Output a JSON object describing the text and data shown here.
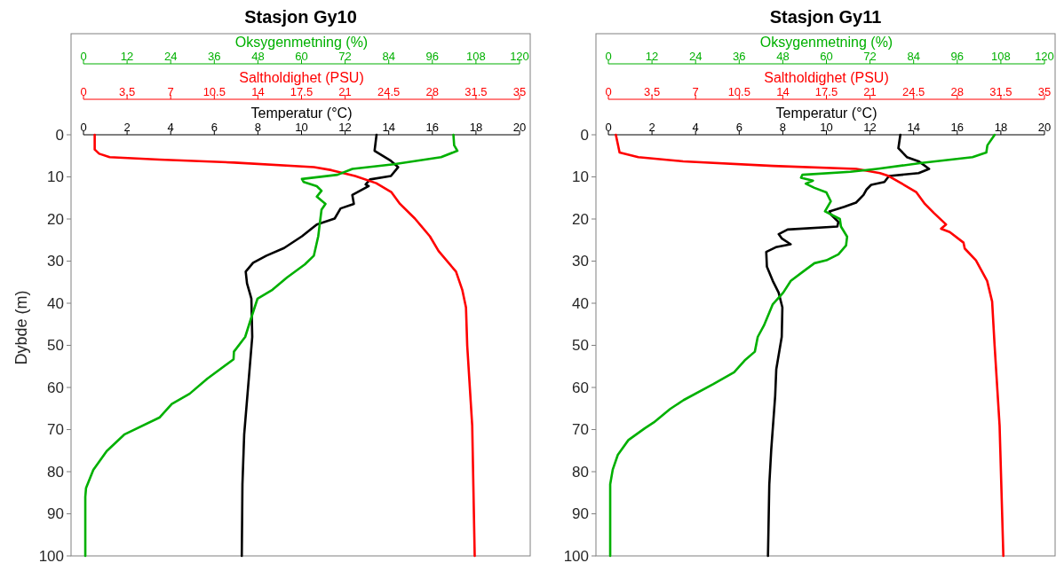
{
  "chart_data": [
    {
      "type": "line",
      "title": "Stasjon Gy10",
      "ylabel": "Dybde (m)",
      "xlabel": "Temperatur (°C)",
      "xlim": [
        0,
        20
      ],
      "xticks": [
        0,
        2,
        4,
        6,
        8,
        10,
        12,
        14,
        16,
        18,
        20
      ],
      "ylim": [
        100,
        0
      ],
      "yticks": [
        0,
        10,
        20,
        30,
        40,
        50,
        60,
        70,
        80,
        90,
        100
      ],
      "series": [
        {
          "color": "#000000",
          "x": [
            13.44,
            13.35,
            14.1,
            14.43,
            14.1,
            13.14,
            12.94,
            13.08,
            12.33,
            12.4,
            11.79,
            11.52,
            10.7,
            10.02,
            9.2,
            8.39,
            7.78,
            7.44,
            7.5,
            7.64,
            7.7,
            7.74,
            7.37,
            7.29,
            7.26
          ],
          "values": [
            0,
            3.8,
            6.2,
            7.7,
            9.8,
            10.6,
            11.8,
            12.2,
            14.3,
            16.4,
            17.5,
            19.9,
            21.3,
            24.1,
            26.9,
            28.7,
            30.4,
            32.5,
            35.3,
            37.8,
            38.9,
            48,
            71.2,
            83,
            100
          ]
        }
      ]
    },
    {
      "type": "line",
      "xlabel": "Saltholdighet (PSU)",
      "xlim": [
        0,
        35
      ],
      "xticks": [
        0,
        3.5,
        7,
        10.5,
        14,
        17.5,
        21,
        24.5,
        28,
        31.5,
        35
      ],
      "ylim": [
        100,
        0
      ],
      "tick_labels": "x",
      "series": [
        {
          "color": "#ff0000",
          "x": [
            0.9,
            0.9,
            1.26,
            2.1,
            6.1,
            12.1,
            18.5,
            19.9,
            21.8,
            23.5,
            24.7,
            25.4,
            26.6,
            27.8,
            28.5,
            29.9,
            30.4,
            30.7,
            30.8,
            31.2,
            31.4
          ],
          "values": [
            0,
            3.5,
            4.5,
            5.3,
            5.9,
            6.6,
            7.7,
            8.4,
            9.8,
            11.5,
            13.6,
            16.4,
            19.9,
            24.1,
            27.6,
            32.5,
            36.8,
            41,
            50.1,
            69.1,
            100
          ]
        }
      ]
    },
    {
      "type": "line",
      "xlabel": "Oksygenmetning (%)",
      "xlim": [
        0,
        120
      ],
      "xticks": [
        0,
        12,
        24,
        36,
        48,
        60,
        72,
        84,
        96,
        108,
        120
      ],
      "ylim": [
        100,
        0
      ],
      "tick_labels": "x",
      "series": [
        {
          "color": "#00b000",
          "x": [
            101.8,
            102,
            102.9,
            98.4,
            85.4,
            74,
            69.9,
            60.1,
            60.6,
            64.2,
            65.5,
            64.2,
            66.6,
            65.5,
            64.6,
            63.4,
            60.9,
            56,
            52,
            47.9,
            46,
            44.5,
            41.4,
            41.3,
            34.1,
            29.2,
            24.3,
            21,
            11.2,
            6.4,
            2.7,
            0.7,
            0.5,
            0.5
          ],
          "values": [
            0,
            2.5,
            3.8,
            5.3,
            7,
            8.1,
            9.5,
            10.5,
            11.2,
            12.2,
            13.3,
            14.7,
            16.4,
            17.8,
            24.1,
            28.7,
            30.8,
            33.9,
            36.8,
            38.9,
            43.9,
            48,
            51.5,
            53.3,
            57.9,
            61.5,
            63.9,
            67.1,
            71.2,
            75.1,
            79.6,
            83.9,
            86,
            100
          ]
        }
      ]
    },
    {
      "type": "line",
      "title": "Stasjon Gy11",
      "xlabel": "Temperatur (°C)",
      "xlim": [
        0,
        20
      ],
      "xticks": [
        0,
        2,
        4,
        6,
        8,
        10,
        12,
        14,
        16,
        18,
        20
      ],
      "ylim": [
        100,
        0
      ],
      "yticks": [
        0,
        10,
        20,
        30,
        40,
        50,
        60,
        70,
        80,
        90,
        100
      ],
      "series": [
        {
          "color": "#000000",
          "x": [
            13.39,
            13.3,
            13.69,
            14.23,
            14.71,
            14.23,
            12.87,
            12.66,
            12.05,
            11.84,
            11.7,
            11.36,
            10.82,
            10.14,
            10.2,
            10.55,
            10.5,
            8.22,
            7.81,
            7.95,
            8.36,
            7.68,
            7.24,
            7.27,
            7.54,
            7.81,
            7.98,
            7.95,
            7.7,
            7.65,
            7.47,
            7.38,
            7.32
          ],
          "values": [
            0,
            3.2,
            5.3,
            6.3,
            8.1,
            9.1,
            9.8,
            11.2,
            11.9,
            13,
            14.3,
            16.1,
            17.1,
            18.2,
            18.9,
            20.7,
            21.8,
            22.5,
            23.6,
            24.6,
            26,
            26.7,
            27.8,
            31.3,
            34.7,
            37.5,
            41,
            48,
            55.7,
            62,
            74.7,
            83.1,
            100
          ]
        }
      ]
    },
    {
      "type": "line",
      "xlabel": "Saltholdighet (PSU)",
      "xlim": [
        0,
        35
      ],
      "xticks": [
        0,
        3.5,
        7,
        10.5,
        14,
        17.5,
        21,
        24.5,
        28,
        31.5,
        35
      ],
      "ylim": [
        100,
        0
      ],
      "tick_labels": "x",
      "series": [
        {
          "color": "#ff0000",
          "x": [
            0.6,
            0.9,
            2.4,
            6,
            13.2,
            19.9,
            21.8,
            22.5,
            23.5,
            24.7,
            25.4,
            26.1,
            27.1,
            26.7,
            27.4,
            28.5,
            28.6,
            29.5,
            30.4,
            30.8,
            31,
            31.4,
            31.7
          ],
          "values": [
            0,
            4.2,
            5.3,
            6.3,
            7.4,
            8.1,
            9.1,
            9.8,
            11.5,
            13.6,
            16.4,
            18.5,
            21.3,
            22.3,
            23.1,
            25.6,
            27,
            29.8,
            34.7,
            39.6,
            50.1,
            69.1,
            100
          ]
        }
      ]
    },
    {
      "type": "line",
      "xlabel": "Oksygenmetning (%)",
      "xlim": [
        0,
        120
      ],
      "xticks": [
        0,
        12,
        24,
        36,
        48,
        60,
        72,
        84,
        96,
        108,
        120
      ],
      "ylim": [
        100,
        0
      ],
      "tick_labels": "x",
      "series": [
        {
          "color": "#00b000",
          "x": [
            106.3,
            104.3,
            104,
            100.2,
            86.2,
            73.9,
            66.6,
            53.4,
            53,
            56.3,
            54.3,
            56.7,
            60,
            61.2,
            59.6,
            63.7,
            64,
            65.7,
            65.4,
            63.3,
            60,
            56.7,
            53.4,
            50.2,
            48.1,
            45.2,
            42.8,
            41.1,
            40.3,
            37.5,
            34.6,
            28.9,
            20.7,
            17,
            12.5,
            10,
            5.5,
            2.6,
            1.2,
            0.5,
            0.5
          ],
          "values": [
            0,
            2.5,
            4.2,
            5.3,
            6.7,
            8.1,
            8.8,
            9.5,
            10.2,
            10.9,
            11.6,
            12.6,
            13.7,
            15.8,
            18.2,
            20,
            21.8,
            24.2,
            26.3,
            28.4,
            29.8,
            30.5,
            32.6,
            34.7,
            37.5,
            40.3,
            45.3,
            48,
            51.5,
            53.6,
            56.4,
            59.2,
            63,
            65.1,
            68.3,
            69.7,
            72.5,
            76,
            79.5,
            83,
            100
          ]
        }
      ]
    }
  ]
}
